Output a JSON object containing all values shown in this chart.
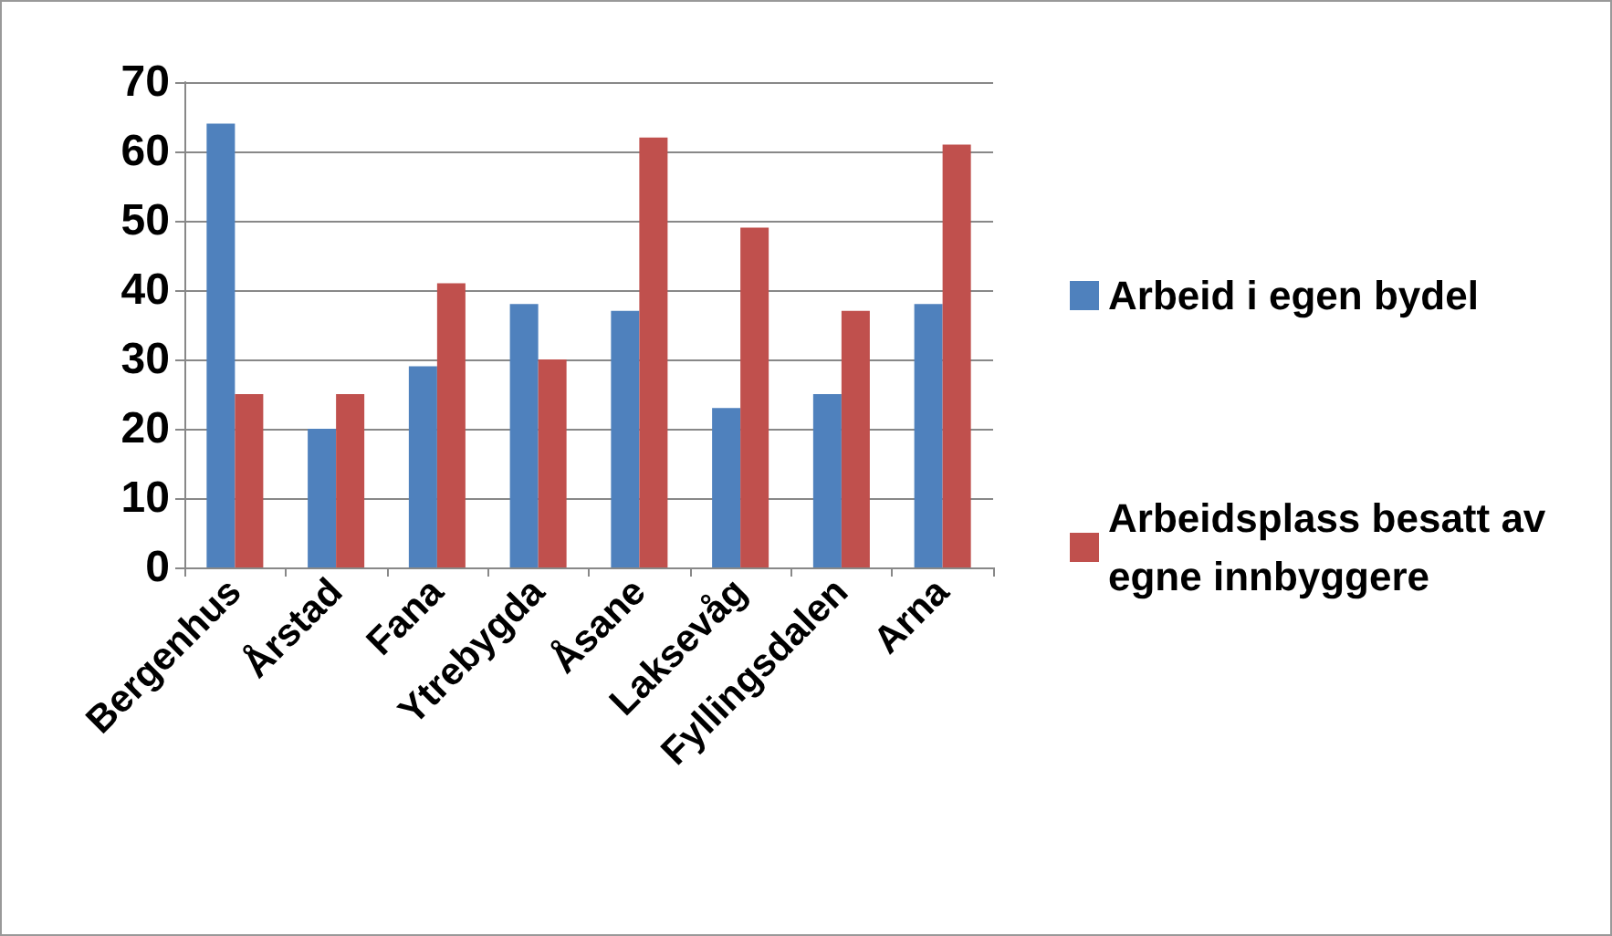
{
  "chart_data": {
    "type": "bar",
    "categories": [
      "Bergenhus",
      "Årstad",
      "Fana",
      "Ytrebygda",
      "Åsane",
      "Laksevåg",
      "Fyllingsdalen",
      "Arna"
    ],
    "series": [
      {
        "name": "Arbeid i egen bydel",
        "color": "#4f81bd",
        "values": [
          64,
          20,
          29,
          38,
          37,
          23,
          25,
          38
        ]
      },
      {
        "name": "Arbeidsplass besatt av egne innbyggere",
        "color": "#c0504d",
        "values": [
          25,
          25,
          41,
          30,
          62,
          49,
          37,
          61
        ]
      }
    ],
    "ylim": [
      0,
      70
    ],
    "yticks": [
      0,
      10,
      20,
      30,
      40,
      50,
      60,
      70
    ],
    "grid": "y",
    "legend": "right"
  }
}
